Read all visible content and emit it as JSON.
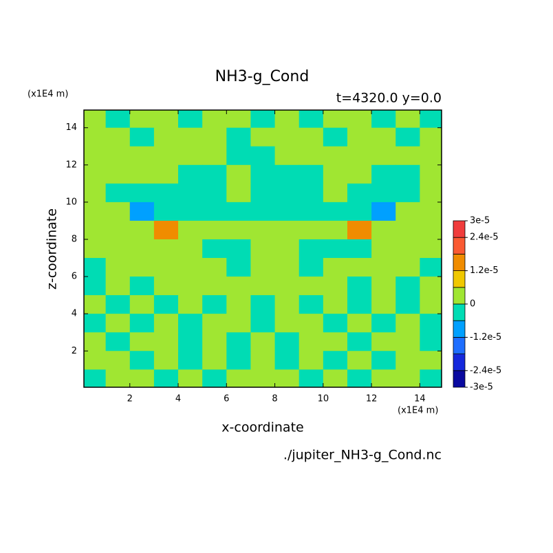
{
  "chart_data": {
    "type": "contour",
    "title": "NH3-g_Cond",
    "subtitle": "t=4320.0 y=0.0",
    "x_label": "x-coordinate",
    "y_label": "z-coordinate",
    "x_unit": "(x1E4 m)",
    "y_unit": "(x1E4 m)",
    "source": "./jupiter_NH3-g_Cond.nc",
    "xlim": [
      0.1,
      14.9
    ],
    "ylim": [
      0.05,
      14.95
    ],
    "xticks": [
      2,
      4,
      6,
      8,
      10,
      12,
      14
    ],
    "yticks": [
      2,
      4,
      6,
      8,
      10,
      12,
      14
    ],
    "x": [
      0.5,
      1.5,
      2.5,
      3.5,
      4.5,
      5.5,
      6.5,
      7.5,
      8.5,
      9.5,
      10.5,
      11.5,
      12.5,
      13.5,
      14.5
    ],
    "y": [
      14.5,
      13.5,
      12.5,
      11.5,
      10.5,
      9.5,
      8.5,
      7.5,
      6.5,
      5.5,
      4.5,
      3.5,
      2.5,
      1.5,
      0.5
    ],
    "z": [
      [
        3e-06,
        -3e-06,
        3e-06,
        3e-06,
        -3e-06,
        3e-06,
        3e-06,
        -3e-06,
        3e-06,
        -3e-06,
        3e-06,
        3e-06,
        -3e-06,
        3e-06,
        -3e-06
      ],
      [
        3e-06,
        3e-06,
        -3e-06,
        3e-06,
        3e-06,
        3e-06,
        -3e-06,
        3e-06,
        3e-06,
        3e-06,
        -3e-06,
        3e-06,
        3e-06,
        -3e-06,
        3e-06
      ],
      [
        3e-06,
        3e-06,
        3e-06,
        3e-06,
        3e-06,
        3e-06,
        -3e-06,
        -3e-06,
        3e-06,
        3e-06,
        3e-06,
        3e-06,
        3e-06,
        3e-06,
        3e-06
      ],
      [
        3e-06,
        3e-06,
        3e-06,
        3e-06,
        -3e-06,
        -3e-06,
        3e-06,
        -3e-06,
        -3e-06,
        -3e-06,
        3e-06,
        3e-06,
        -3e-06,
        -3e-06,
        3e-06
      ],
      [
        3e-06,
        -3e-06,
        -3e-06,
        -3e-06,
        -3e-06,
        -3e-06,
        3e-06,
        -3e-06,
        -3e-06,
        -3e-06,
        3e-06,
        -3e-06,
        -3e-06,
        -3e-06,
        3e-06
      ],
      [
        3e-06,
        3e-06,
        -9e-06,
        -3e-06,
        -3e-06,
        -3e-06,
        -3e-06,
        -3e-06,
        -3e-06,
        -3e-06,
        -3e-06,
        -3e-06,
        -9e-06,
        3e-06,
        3e-06
      ],
      [
        3e-06,
        3e-06,
        3e-06,
        1.5e-05,
        3e-06,
        3e-06,
        3e-06,
        3e-06,
        3e-06,
        3e-06,
        3e-06,
        1.5e-05,
        3e-06,
        3e-06,
        3e-06
      ],
      [
        3e-06,
        3e-06,
        3e-06,
        3e-06,
        3e-06,
        -3e-06,
        -3e-06,
        3e-06,
        3e-06,
        -3e-06,
        -3e-06,
        -3e-06,
        3e-06,
        3e-06,
        3e-06
      ],
      [
        -3e-06,
        3e-06,
        3e-06,
        3e-06,
        3e-06,
        3e-06,
        -3e-06,
        3e-06,
        3e-06,
        -3e-06,
        3e-06,
        3e-06,
        3e-06,
        3e-06,
        -3e-06
      ],
      [
        -3e-06,
        3e-06,
        -3e-06,
        3e-06,
        3e-06,
        3e-06,
        3e-06,
        3e-06,
        3e-06,
        3e-06,
        3e-06,
        -3e-06,
        3e-06,
        -3e-06,
        3e-06
      ],
      [
        3e-06,
        -3e-06,
        3e-06,
        -3e-06,
        3e-06,
        -3e-06,
        3e-06,
        -3e-06,
        3e-06,
        -3e-06,
        3e-06,
        -3e-06,
        3e-06,
        -3e-06,
        3e-06
      ],
      [
        -3e-06,
        3e-06,
        -3e-06,
        3e-06,
        -3e-06,
        3e-06,
        3e-06,
        -3e-06,
        3e-06,
        3e-06,
        -3e-06,
        3e-06,
        -3e-06,
        3e-06,
        -3e-06
      ],
      [
        3e-06,
        -3e-06,
        3e-06,
        3e-06,
        -3e-06,
        3e-06,
        -3e-06,
        3e-06,
        -3e-06,
        3e-06,
        3e-06,
        -3e-06,
        3e-06,
        3e-06,
        -3e-06
      ],
      [
        3e-06,
        3e-06,
        -3e-06,
        3e-06,
        -3e-06,
        3e-06,
        -3e-06,
        3e-06,
        -3e-06,
        3e-06,
        -3e-06,
        3e-06,
        -3e-06,
        3e-06,
        3e-06
      ],
      [
        -3e-06,
        3e-06,
        3e-06,
        -3e-06,
        3e-06,
        -3e-06,
        3e-06,
        3e-06,
        3e-06,
        -3e-06,
        3e-06,
        -3e-06,
        3e-06,
        3e-06,
        -3e-06
      ]
    ],
    "levels": [
      -3e-05,
      -2.4e-05,
      -1.8e-05,
      -1.2e-05,
      -6e-06,
      0,
      6e-06,
      1.2e-05,
      1.8e-05,
      2.4e-05,
      3e-05
    ],
    "colors": [
      "#0a0aa0",
      "#1428dc",
      "#1e6eff",
      "#00a0ff",
      "#00dcb4",
      "#a0e632",
      "#f0c800",
      "#f08c00",
      "#fa5a32",
      "#f03c3c"
    ],
    "colorbar_ticks": [
      {
        "value": 3e-05,
        "label": "3e-5"
      },
      {
        "value": 2.4e-05,
        "label": "2.4e-5"
      },
      {
        "value": 1.2e-05,
        "label": "1.2e-5"
      },
      0,
      {
        "value": -1.2e-05,
        "label": "-1.2e-5"
      },
      {
        "value": -2.4e-05,
        "label": "-2.4e-5"
      },
      {
        "value": -3e-05,
        "label": "-3e-5"
      }
    ]
  }
}
